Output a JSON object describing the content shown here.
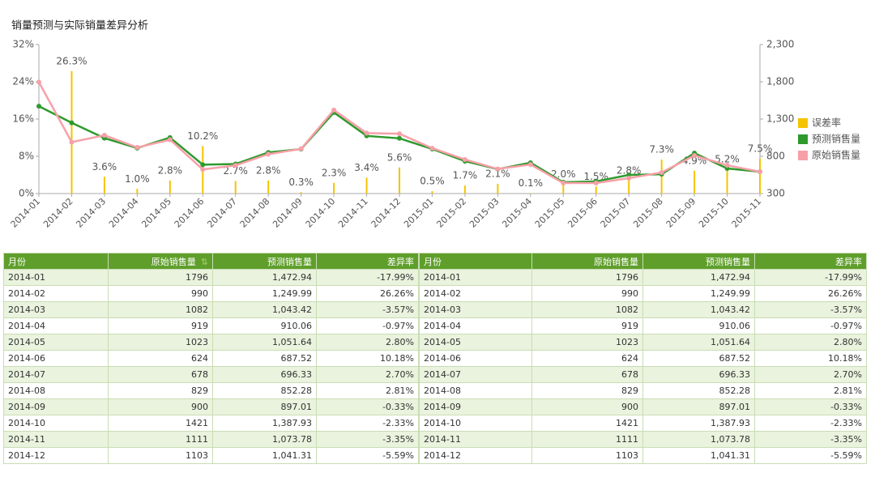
{
  "chart_data": {
    "type": "bar-line",
    "title": "销量预测与实际销量差异分析",
    "categories": [
      "2014-01",
      "2014-02",
      "2014-03",
      "2014-04",
      "2014-05",
      "2014-06",
      "2014-07",
      "2014-08",
      "2014-09",
      "2014-10",
      "2014-11",
      "2014-12",
      "2015-01",
      "2015-02",
      "2015-03",
      "2015-04",
      "2015-05",
      "2015-06",
      "2015-07",
      "2015-08",
      "2015-09",
      "2015-10",
      "2015-11"
    ],
    "series": [
      {
        "name": "误差率",
        "type": "bar",
        "color": "#f5c400",
        "values": [
          null,
          26.3,
          3.6,
          1.0,
          2.8,
          10.2,
          2.7,
          2.8,
          0.3,
          2.3,
          3.4,
          5.6,
          0.5,
          1.7,
          2.1,
          0.1,
          2.0,
          1.5,
          2.8,
          7.3,
          4.9,
          5.2,
          7.5
        ],
        "value_labels": [
          null,
          "26.3%",
          "3.6%",
          "1.0%",
          "2.8%",
          "10.2%",
          "2.7%",
          "2.8%",
          "0.3%",
          "2.3%",
          "3.4%",
          "5.6%",
          "0.5%",
          "1.7%",
          "2.1%",
          "0.1%",
          "2.0%",
          "1.5%",
          "2.8%",
          "7.3%",
          "4.9%",
          "5.2%",
          "7.5%"
        ]
      },
      {
        "name": "预测销售量",
        "type": "line",
        "axis": "y2",
        "color": "#2e9a2e",
        "values": [
          1472.94,
          1249.99,
          1043.42,
          910.06,
          1051.64,
          687.52,
          696.33,
          852.28,
          897.01,
          1387.93,
          1073.78,
          1041.31,
          898,
          735,
          628,
          713,
          452,
          463,
          550,
          560,
          843,
          637,
          593
        ]
      },
      {
        "name": "原始销售量",
        "type": "line",
        "axis": "y2",
        "color": "#f7a0a8",
        "values": [
          1796,
          990,
          1082,
          919,
          1023,
          624,
          678,
          829,
          900,
          1421,
          1111,
          1103,
          909,
          757,
          630,
          690,
          441,
          441,
          507,
          583,
          811,
          680,
          593
        ]
      }
    ],
    "ylim": [
      0,
      32
    ],
    "yticks": [
      {
        "value": 0,
        "label": "0%"
      },
      {
        "value": 8,
        "label": "8%"
      },
      {
        "value": 16,
        "label": "16%"
      },
      {
        "value": 24,
        "label": "24%"
      },
      {
        "value": 32,
        "label": "32%"
      }
    ],
    "y2lim": [
      300,
      2300
    ],
    "y2ticks": [
      300,
      800,
      {
        "value": 1300,
        "label": "1,300"
      },
      {
        "value": 1800,
        "label": "1,800"
      },
      {
        "value": 2300,
        "label": "2,300"
      }
    ],
    "legend": "right"
  },
  "table": {
    "headers": [
      "月份",
      "原始销售量",
      "预测销售量",
      "差异率"
    ],
    "rows": [
      [
        "2014-01",
        1796,
        "1,472.94",
        "-17.99%"
      ],
      [
        "2014-02",
        990,
        "1,249.99",
        "26.26%"
      ],
      [
        "2014-03",
        1082,
        "1,043.42",
        "-3.57%"
      ],
      [
        "2014-04",
        919,
        "910.06",
        "-0.97%"
      ],
      [
        "2014-05",
        1023,
        "1,051.64",
        "2.80%"
      ],
      [
        "2014-06",
        624,
        "687.52",
        "10.18%"
      ],
      [
        "2014-07",
        678,
        "696.33",
        "2.70%"
      ],
      [
        "2014-08",
        829,
        "852.28",
        "2.81%"
      ],
      [
        "2014-09",
        900,
        "897.01",
        "-0.33%"
      ],
      [
        "2014-10",
        1421,
        "1,387.93",
        "-2.33%"
      ],
      [
        "2014-11",
        1111,
        "1,073.78",
        "-3.35%"
      ],
      [
        "2014-12",
        1103,
        "1,041.31",
        "-5.59%"
      ]
    ]
  }
}
